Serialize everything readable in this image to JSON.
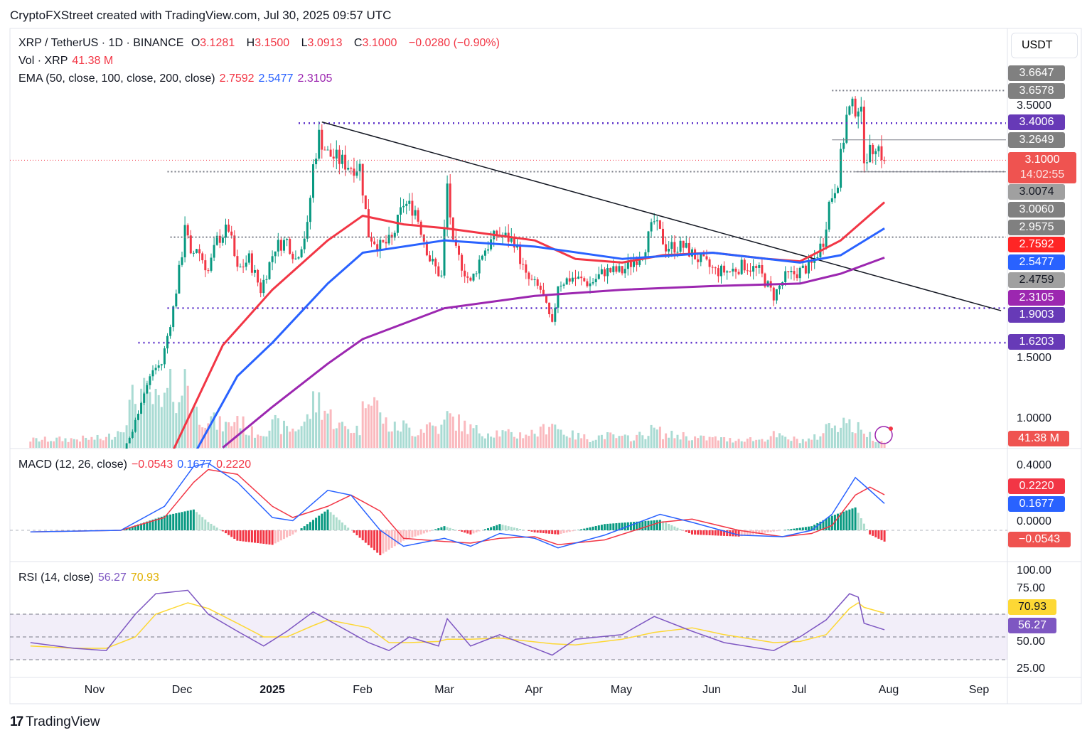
{
  "header": {
    "title": "CryptoFXStreet created with TradingView.com, Jul 30, 2025 09:57 UTC"
  },
  "legend": {
    "symbol": "XRP / TetherUS · 1D · BINANCE",
    "o_label": "O",
    "o": "3.1281",
    "h_label": "H",
    "h": "3.1500",
    "l_label": "L",
    "l": "3.0913",
    "c_label": "C",
    "c": "3.1000",
    "change": "−0.0280 (−0.90%)",
    "vol_label": "Vol · XRP",
    "vol": "41.38 M",
    "ema_label": "EMA (50, close, 100, close, 200, close)",
    "ema50": "2.7592",
    "ema100": "2.5477",
    "ema200": "2.3105",
    "macd_label": "MACD (12, 26, close)",
    "macd_hist": "−0.0543",
    "macd": "0.1677",
    "macd_signal": "0.2220",
    "rsi_label": "RSI (14, close)",
    "rsi": "56.27",
    "rsi_ma": "70.93"
  },
  "currency_button": "USDT",
  "price_axis": {
    "ticks": [
      "3.5000",
      "1.5000",
      "1.0000"
    ],
    "tags": [
      {
        "v": "3.6647",
        "price": 3.6647,
        "color": "#808080"
      },
      {
        "v": "3.6578",
        "price": 3.6578,
        "color": "#808080"
      },
      {
        "v": "3.4006",
        "price": 3.4006,
        "color": "#673ab7"
      },
      {
        "v": "3.2649",
        "price": 3.2649,
        "color": "#808080"
      },
      {
        "v": "3.0074",
        "price": 3.0074,
        "color": "#a0a0a0"
      },
      {
        "v": "3.0060",
        "price": 3.006,
        "color": "#808080"
      },
      {
        "v": "2.9575",
        "price": 2.9575,
        "color": "#808080"
      },
      {
        "v": "2.7592",
        "price": 2.7592,
        "color": "#ff2525"
      },
      {
        "v": "2.5477",
        "price": 2.5477,
        "color": "#2962ff"
      },
      {
        "v": "2.4759",
        "price": 2.4759,
        "color": "#a0a0a0"
      },
      {
        "v": "2.3105",
        "price": 2.3105,
        "color": "#9c27b0"
      },
      {
        "v": "1.9003",
        "price": 1.9003,
        "color": "#673ab7"
      },
      {
        "v": "1.6203",
        "price": 1.6203,
        "color": "#673ab7"
      }
    ],
    "last_price": "3.1000",
    "countdown": "14:02:55",
    "volume_tag": "41.38 M"
  },
  "macd_axis": {
    "ticks": [
      "0.4000",
      "0.0000"
    ],
    "tags": [
      "0.2220",
      "0.1677",
      "−0.0543"
    ]
  },
  "rsi_axis": {
    "ticks": [
      "100.00",
      "75.00",
      "50.00",
      "25.00"
    ],
    "tags": [
      "70.93",
      "56.27"
    ]
  },
  "x_axis": [
    "Nov",
    "Dec",
    "2025",
    "Feb",
    "Mar",
    "Apr",
    "May",
    "Jun",
    "Jul",
    "Aug",
    "Sep"
  ],
  "branding": "TradingView",
  "colors": {
    "up": "#089981",
    "down": "#f23645",
    "ema50": "#f23645",
    "ema100": "#2962ff",
    "ema200": "#9c27b0",
    "level": "#5b2fc9"
  },
  "chart_data": {
    "type": "candlestick",
    "title": "XRP / TetherUS · 1D · BINANCE",
    "ylim": [
      0.77,
      3.75
    ],
    "price": [
      [
        "2024-10-10",
        0.53,
        5
      ],
      [
        "2024-11-05",
        0.52,
        6
      ],
      [
        "2024-11-10",
        0.7,
        12
      ],
      [
        "2024-11-14",
        0.9,
        30
      ],
      [
        "2024-11-17",
        1.15,
        35
      ],
      [
        "2024-11-21",
        1.4,
        30
      ],
      [
        "2024-11-24",
        1.45,
        25
      ],
      [
        "2024-11-28",
        1.9,
        40
      ],
      [
        "2024-12-01",
        2.35,
        28
      ],
      [
        "2024-12-02",
        2.6,
        55
      ],
      [
        "2024-12-04",
        2.3,
        30
      ],
      [
        "2024-12-06",
        2.4,
        22
      ],
      [
        "2024-12-10",
        2.2,
        20
      ],
      [
        "2024-12-13",
        2.45,
        15
      ],
      [
        "2024-12-17",
        2.55,
        14
      ],
      [
        "2024-12-20",
        2.2,
        20
      ],
      [
        "2024-12-24",
        2.3,
        10
      ],
      [
        "2024-12-28",
        2.05,
        10
      ],
      [
        "2025-01-02",
        2.4,
        15
      ],
      [
        "2025-01-06",
        2.45,
        12
      ],
      [
        "2025-01-09",
        2.3,
        12
      ],
      [
        "2025-01-13",
        2.55,
        18
      ],
      [
        "2025-01-15",
        3.05,
        28
      ],
      [
        "2025-01-17",
        3.3,
        30
      ],
      [
        "2025-01-20",
        3.15,
        22
      ],
      [
        "2025-01-24",
        3.1,
        14
      ],
      [
        "2025-01-28",
        3.05,
        12
      ],
      [
        "2025-01-31",
        3.05,
        12
      ],
      [
        "2025-02-03",
        2.5,
        45
      ],
      [
        "2025-02-07",
        2.4,
        20
      ],
      [
        "2025-02-11",
        2.45,
        12
      ],
      [
        "2025-02-15",
        2.75,
        14
      ],
      [
        "2025-02-19",
        2.7,
        10
      ],
      [
        "2025-02-24",
        2.3,
        15
      ],
      [
        "2025-02-28",
        2.15,
        12
      ],
      [
        "2025-03-02",
        2.9,
        20
      ],
      [
        "2025-03-04",
        2.4,
        18
      ],
      [
        "2025-03-10",
        2.1,
        12
      ],
      [
        "2025-03-14",
        2.35,
        10
      ],
      [
        "2025-03-19",
        2.5,
        10
      ],
      [
        "2025-03-25",
        2.45,
        8
      ],
      [
        "2025-03-29",
        2.15,
        9
      ],
      [
        "2025-04-03",
        2.05,
        10
      ],
      [
        "2025-04-07",
        1.75,
        18
      ],
      [
        "2025-04-09",
        2.1,
        12
      ],
      [
        "2025-04-14",
        2.15,
        8
      ],
      [
        "2025-04-20",
        2.1,
        6
      ],
      [
        "2025-04-25",
        2.2,
        8
      ],
      [
        "2025-05-01",
        2.2,
        6
      ],
      [
        "2025-05-08",
        2.35,
        8
      ],
      [
        "2025-05-12",
        2.6,
        12
      ],
      [
        "2025-05-16",
        2.4,
        8
      ],
      [
        "2025-05-22",
        2.4,
        8
      ],
      [
        "2025-05-27",
        2.3,
        6
      ],
      [
        "2025-06-02",
        2.2,
        6
      ],
      [
        "2025-06-07",
        2.2,
        5
      ],
      [
        "2025-06-12",
        2.25,
        6
      ],
      [
        "2025-06-17",
        2.2,
        5
      ],
      [
        "2025-06-22",
        2.0,
        8
      ],
      [
        "2025-06-26",
        2.15,
        6
      ],
      [
        "2025-07-01",
        2.2,
        5
      ],
      [
        "2025-07-05",
        2.25,
        5
      ],
      [
        "2025-07-09",
        2.45,
        10
      ],
      [
        "2025-07-11",
        2.75,
        15
      ],
      [
        "2025-07-14",
        2.95,
        16
      ],
      [
        "2025-07-17",
        3.45,
        18
      ],
      [
        "2025-07-18",
        3.5,
        14
      ],
      [
        "2025-07-21",
        3.55,
        12
      ],
      [
        "2025-07-22",
        3.45,
        10
      ],
      [
        "2025-07-23",
        3.15,
        12
      ],
      [
        "2025-07-25",
        3.15,
        8
      ],
      [
        "2025-07-27",
        3.25,
        6
      ],
      [
        "2025-07-30",
        3.1,
        4
      ]
    ],
    "ema50": [
      [
        "2024-11-28",
        0.75
      ],
      [
        "2024-12-15",
        1.6
      ],
      [
        "2025-01-01",
        2.05
      ],
      [
        "2025-01-20",
        2.45
      ],
      [
        "2025-02-01",
        2.65
      ],
      [
        "2025-02-15",
        2.58
      ],
      [
        "2025-03-01",
        2.55
      ],
      [
        "2025-04-01",
        2.45
      ],
      [
        "2025-04-15",
        2.3
      ],
      [
        "2025-05-01",
        2.27
      ],
      [
        "2025-05-15",
        2.33
      ],
      [
        "2025-06-01",
        2.35
      ],
      [
        "2025-06-20",
        2.3
      ],
      [
        "2025-07-01",
        2.28
      ],
      [
        "2025-07-15",
        2.45
      ],
      [
        "2025-07-30",
        2.7592
      ]
    ],
    "ema100": [
      [
        "2024-12-06",
        0.75
      ],
      [
        "2024-12-20",
        1.35
      ],
      [
        "2025-01-01",
        1.62
      ],
      [
        "2025-01-20",
        2.1
      ],
      [
        "2025-02-01",
        2.35
      ],
      [
        "2025-03-01",
        2.45
      ],
      [
        "2025-04-01",
        2.4
      ],
      [
        "2025-05-01",
        2.3
      ],
      [
        "2025-06-01",
        2.35
      ],
      [
        "2025-07-01",
        2.27
      ],
      [
        "2025-07-15",
        2.33
      ],
      [
        "2025-07-30",
        2.5477
      ]
    ],
    "ema200": [
      [
        "2024-12-15",
        0.77
      ],
      [
        "2025-01-01",
        1.1
      ],
      [
        "2025-01-20",
        1.45
      ],
      [
        "2025-02-01",
        1.65
      ],
      [
        "2025-03-01",
        1.9
      ],
      [
        "2025-04-01",
        2.0
      ],
      [
        "2025-05-01",
        2.05
      ],
      [
        "2025-06-01",
        2.08
      ],
      [
        "2025-07-01",
        2.1
      ],
      [
        "2025-07-15",
        2.18
      ],
      [
        "2025-07-30",
        2.3105
      ]
    ],
    "levels": [
      {
        "price": 3.4006,
        "from": "2025-01-10",
        "style": "dotted-purple"
      },
      {
        "price": 1.9003,
        "from": "2024-11-26",
        "style": "dotted-purple"
      },
      {
        "price": 1.6203,
        "from": "2024-11-16",
        "style": "dotted-purple"
      },
      {
        "price": 3.0074,
        "from": "2024-11-26",
        "style": "dotted-gray"
      },
      {
        "price": 2.4759,
        "from": "2024-11-27",
        "style": "dotted-gray"
      },
      {
        "price": 3.6647,
        "from": "2025-07-12",
        "style": "dotted-gray"
      },
      {
        "price": 3.2649,
        "from": "2025-07-12",
        "style": "solid-gray"
      },
      {
        "price": 3.006,
        "from": "2025-07-20",
        "style": "solid-gray"
      }
    ],
    "trendline": [
      [
        "2025-01-18",
        3.41
      ],
      [
        "2025-09-08",
        1.88
      ]
    ],
    "macd": [
      [
        "2024-10-10",
        -0.01,
        -0.01
      ],
      [
        "2024-11-10",
        0.0,
        0.0
      ],
      [
        "2024-11-25",
        0.15,
        0.08
      ],
      [
        "2024-12-05",
        0.4,
        0.3
      ],
      [
        "2024-12-10",
        0.42,
        0.38
      ],
      [
        "2024-12-20",
        0.3,
        0.35
      ],
      [
        "2025-01-01",
        0.08,
        0.15
      ],
      [
        "2025-01-08",
        0.06,
        0.08
      ],
      [
        "2025-01-20",
        0.25,
        0.15
      ],
      [
        "2025-01-28",
        0.22,
        0.22
      ],
      [
        "2025-02-07",
        0.0,
        0.12
      ],
      [
        "2025-02-15",
        -0.1,
        -0.05
      ],
      [
        "2025-03-01",
        -0.05,
        -0.07
      ],
      [
        "2025-03-10",
        -0.1,
        -0.08
      ],
      [
        "2025-03-20",
        -0.02,
        -0.05
      ],
      [
        "2025-04-01",
        -0.05,
        -0.04
      ],
      [
        "2025-04-09",
        -0.11,
        -0.09
      ],
      [
        "2025-04-25",
        -0.03,
        -0.06
      ],
      [
        "2025-05-14",
        0.1,
        0.05
      ],
      [
        "2025-05-25",
        0.05,
        0.07
      ],
      [
        "2025-06-10",
        -0.03,
        0.0
      ],
      [
        "2025-06-25",
        -0.04,
        -0.04
      ],
      [
        "2025-07-05",
        0.0,
        -0.02
      ],
      [
        "2025-07-12",
        0.1,
        0.03
      ],
      [
        "2025-07-20",
        0.33,
        0.22
      ],
      [
        "2025-07-25",
        0.25,
        0.27
      ],
      [
        "2025-07-30",
        0.1677,
        0.222
      ]
    ],
    "rsi": [
      [
        "2024-10-10",
        45,
        42
      ],
      [
        "2024-10-25",
        40,
        40
      ],
      [
        "2024-11-05",
        38,
        40
      ],
      [
        "2024-11-15",
        70,
        50
      ],
      [
        "2024-11-22",
        88,
        70
      ],
      [
        "2024-12-03",
        91,
        80
      ],
      [
        "2024-12-10",
        70,
        75
      ],
      [
        "2024-12-20",
        55,
        62
      ],
      [
        "2024-12-29",
        42,
        50
      ],
      [
        "2025-01-06",
        55,
        50
      ],
      [
        "2025-01-15",
        72,
        60
      ],
      [
        "2025-01-20",
        65,
        65
      ],
      [
        "2025-02-03",
        45,
        58
      ],
      [
        "2025-02-10",
        38,
        45
      ],
      [
        "2025-02-17",
        50,
        45
      ],
      [
        "2025-02-27",
        42,
        46
      ],
      [
        "2025-03-02",
        66,
        48
      ],
      [
        "2025-03-10",
        42,
        48
      ],
      [
        "2025-03-20",
        52,
        49
      ],
      [
        "2025-04-07",
        34,
        44
      ],
      [
        "2025-04-15",
        48,
        43
      ],
      [
        "2025-05-01",
        52,
        48
      ],
      [
        "2025-05-12",
        68,
        54
      ],
      [
        "2025-05-25",
        55,
        58
      ],
      [
        "2025-06-05",
        45,
        52
      ],
      [
        "2025-06-22",
        38,
        45
      ],
      [
        "2025-07-01",
        50,
        46
      ],
      [
        "2025-07-10",
        65,
        52
      ],
      [
        "2025-07-18",
        88,
        75
      ],
      [
        "2025-07-21",
        85,
        80
      ],
      [
        "2025-07-23",
        62,
        76
      ],
      [
        "2025-07-30",
        56.27,
        70.93
      ]
    ]
  }
}
